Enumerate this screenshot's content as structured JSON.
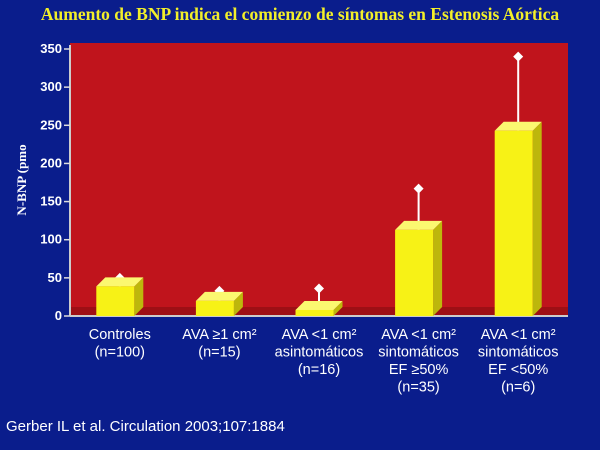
{
  "slide": {
    "title": "Aumento de BNP indica el comienzo de síntomas en Estenosis Aórtica",
    "citation": "Gerber IL et al. Circulation 2003;107:1884"
  },
  "colors": {
    "background": "#0a1d8c",
    "plot_area": "#c0141c",
    "bar": "#f7f216",
    "title": "#f2ef2a",
    "text": "#ffffff"
  },
  "chart_data": {
    "type": "bar",
    "ylabel": "N-BNP (pmo",
    "ylim": [
      0,
      350
    ],
    "yticks": [
      0,
      50,
      100,
      150,
      200,
      250,
      300,
      350
    ],
    "grid": false,
    "categories": [
      [
        "Controles",
        "(n=100)"
      ],
      [
        "AVA ≥1 cm²",
        "(n=15)"
      ],
      [
        "AVA <1 cm²",
        "asintomáticos",
        "(n=16)"
      ],
      [
        "AVA <1 cm²",
        "sintomáticos",
        "EF  ≥50%",
        "(n=35)"
      ],
      [
        "AVA <1 cm²",
        "sintomáticos",
        "EF  <50%",
        "(n=6)"
      ]
    ],
    "values": [
      33,
      14,
      2,
      107,
      237
    ],
    "error_upper": [
      50,
      33,
      36,
      167,
      340
    ]
  }
}
